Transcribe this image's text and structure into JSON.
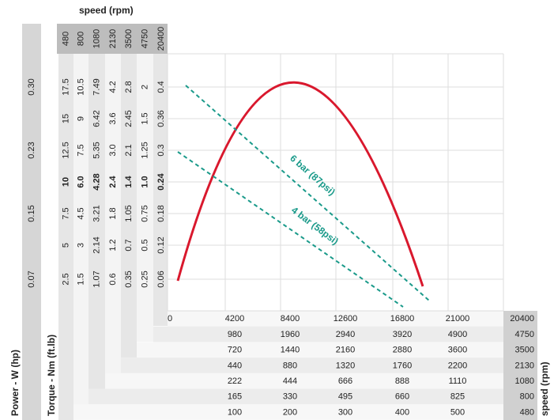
{
  "header": {
    "title": "speed (rpm)",
    "speeds": [
      "480",
      "800",
      "1080",
      "2130",
      "3500",
      "4750",
      "20400"
    ]
  },
  "power": {
    "label": "Power - W (hp)",
    "values": [
      "0.30",
      "0.23",
      "0.15",
      "0.07"
    ]
  },
  "torque": {
    "label": "Torque - Nm (ft.lb)",
    "columns": [
      [
        "17.5",
        "15",
        "12.5",
        "10",
        "7.5",
        "5",
        "2.5"
      ],
      [
        "10.5",
        "9",
        "7.5",
        "6.0",
        "4.5",
        "3",
        "1.5"
      ],
      [
        "7.49",
        "6.42",
        "5.35",
        "4.28",
        "3.21",
        "2.14",
        "1.07"
      ],
      [
        "4.2",
        "3.6",
        "3.0",
        "2.4",
        "1.8",
        "1.2",
        "0.6"
      ],
      [
        "2.8",
        "2.45",
        "2.1",
        "1.4",
        "1.05",
        "0.7",
        "0.35"
      ],
      [
        "2",
        "1.5",
        "1.25",
        "1.0",
        "0.75",
        "0.5",
        "0.25"
      ],
      [
        "0.4",
        "0.36",
        "0.3",
        "0.24",
        "0.18",
        "0.12",
        "0.06"
      ]
    ]
  },
  "speed_axis": {
    "label": "speed (rpm)",
    "values": [
      "0",
      "4200",
      "8400",
      "12600",
      "16800",
      "21000"
    ],
    "max": "20400"
  },
  "table": {
    "rows": [
      {
        "cells": [
          "980",
          "1960",
          "2940",
          "3920",
          "4900"
        ],
        "speed": "4750"
      },
      {
        "cells": [
          "720",
          "1440",
          "2160",
          "2880",
          "3600"
        ],
        "speed": "3500"
      },
      {
        "cells": [
          "440",
          "880",
          "1320",
          "1760",
          "2200"
        ],
        "speed": "2130"
      },
      {
        "cells": [
          "222",
          "444",
          "666",
          "888",
          "1110"
        ],
        "speed": "1080"
      },
      {
        "cells": [
          "165",
          "330",
          "495",
          "660",
          "825"
        ],
        "speed": "800"
      },
      {
        "cells": [
          "100",
          "200",
          "300",
          "400",
          "500"
        ],
        "speed": "480"
      }
    ]
  },
  "annotations": [
    "6 bar (87psi)",
    "4 bar (58psi)"
  ]
}
